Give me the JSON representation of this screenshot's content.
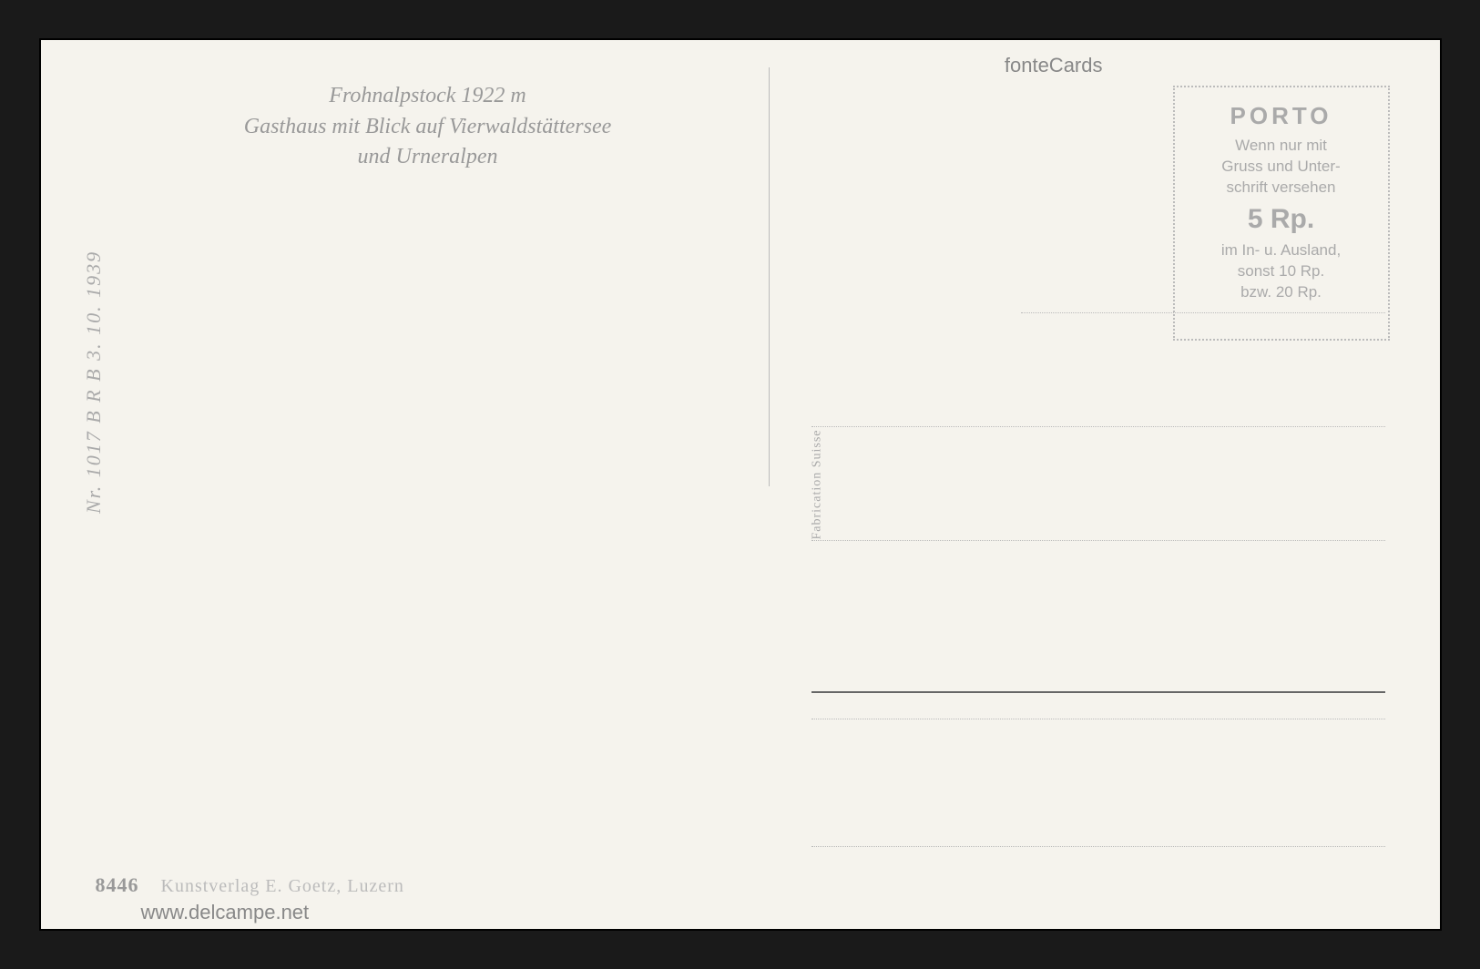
{
  "title": {
    "line1": "Frohnalpstock 1922 m",
    "line2": "Gasthaus mit Blick auf Vierwaldstättersee",
    "line3": "und Urneralpen"
  },
  "divider_label": "Fabrication Suisse",
  "side_text": "Nr. 1017   B R B  3. 10. 1939",
  "bottom": {
    "number": "8446",
    "publisher": "Kunstverlag E. Goetz, Luzern"
  },
  "stamp": {
    "heading": "PORTO",
    "line1": "Wenn nur mit",
    "line2": "Gruss und Unter-",
    "line3": "schrift versehen",
    "rate": "5 Rp.",
    "line4": "im In- u. Ausland,",
    "line5": "sonst 10 Rp.",
    "line6": "bzw. 20 Rp."
  },
  "watermark_top": "fonteCards",
  "watermark_bottom": "www.delcampe.net",
  "colors": {
    "card_bg": "#f5f3ed",
    "text_faded": "#aaa",
    "text_medium": "#999",
    "line_dotted": "#bbb",
    "line_solid": "#666"
  }
}
